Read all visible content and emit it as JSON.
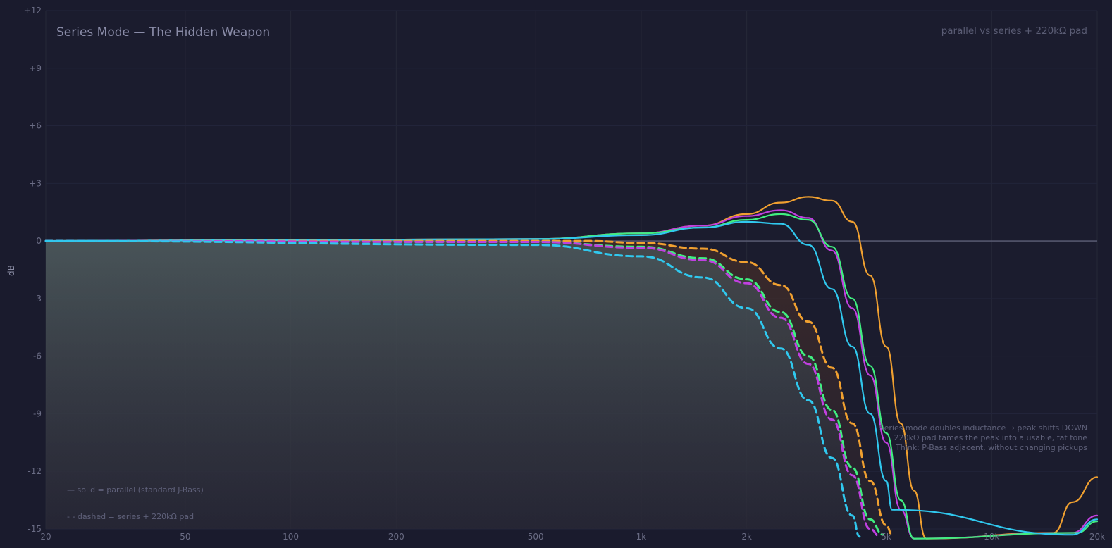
{
  "chart_data": {
    "type": "line",
    "title": "Series Mode — The Hidden Weapon",
    "subtitle": "parallel vs series + 220kΩ pad",
    "ylabel": "dB",
    "xscale": "log",
    "xlim": [
      20,
      20000
    ],
    "ylim": [
      -15,
      12
    ],
    "grid": true,
    "x_ticks": [
      20,
      50,
      100,
      200,
      500,
      1000,
      2000,
      5000,
      10000,
      20000
    ],
    "x_tick_labels": [
      "20",
      "50",
      "100",
      "200",
      "500",
      "1k",
      "2k",
      "5k",
      "10k",
      "20k"
    ],
    "y_ticks": [
      12,
      9,
      6,
      3,
      0,
      -3,
      -6,
      -9,
      -12,
      -15
    ],
    "y_tick_labels": [
      "+12",
      "+9",
      "+6",
      "+3",
      "0",
      "-3",
      "-6",
      "-9",
      "-12",
      "-15"
    ],
    "legend_notes": [
      "— solid = parallel (standard J-Bass)",
      "- - dashed = series + 220kΩ pad"
    ],
    "annotations": [
      "Series mode doubles inductance → peak shifts DOWN",
      "220kΩ pad tames the peak into a usable, fat tone",
      "Think: P-Bass adjacent, without changing pickups"
    ],
    "colors": {
      "orange": "#f0a030",
      "magenta": "#c040e0",
      "green": "#40ee80",
      "cyan": "#30c8ee",
      "zero_line": "#5e6078"
    },
    "series": [
      {
        "style": "solid",
        "color": "#f0a030",
        "x": [
          20,
          500,
          1000,
          1500,
          2000,
          2500,
          3000,
          3500,
          4000,
          4500,
          5000,
          5500,
          6000,
          6500,
          15000,
          17000,
          20000
        ],
        "y": [
          0,
          0.1,
          0.4,
          0.8,
          1.4,
          2.0,
          2.3,
          2.1,
          1.0,
          -1.8,
          -5.5,
          -9.5,
          -13.0,
          -15.5,
          -15.2,
          -13.6,
          -12.3
        ]
      },
      {
        "style": "solid",
        "color": "#c040e0",
        "x": [
          20,
          500,
          1000,
          1500,
          2000,
          2500,
          3000,
          3500,
          4000,
          4500,
          5000,
          5500,
          6000,
          17000,
          20000
        ],
        "y": [
          0,
          0.1,
          0.4,
          0.8,
          1.3,
          1.6,
          1.2,
          -0.5,
          -3.5,
          -7.0,
          -10.5,
          -14.0,
          -15.5,
          -15.2,
          -14.3
        ]
      },
      {
        "style": "solid",
        "color": "#40ee80",
        "x": [
          20,
          500,
          1000,
          1500,
          2000,
          2500,
          3000,
          3500,
          4000,
          4500,
          5000,
          5500,
          6000,
          17500,
          20000
        ],
        "y": [
          0,
          0.1,
          0.4,
          0.7,
          1.1,
          1.4,
          1.1,
          -0.3,
          -3.0,
          -6.5,
          -10.0,
          -13.5,
          -15.5,
          -15.2,
          -14.6
        ]
      },
      {
        "style": "solid",
        "color": "#30c8ee",
        "x": [
          20,
          500,
          1000,
          1500,
          2000,
          2500,
          3000,
          3500,
          4000,
          4500,
          5000,
          5200,
          17000,
          20000
        ],
        "y": [
          0,
          0.1,
          0.3,
          0.7,
          1.0,
          0.9,
          -0.2,
          -2.5,
          -5.5,
          -9.0,
          -12.5,
          -14.0,
          -15.3,
          -14.5
        ]
      },
      {
        "style": "dashed",
        "color": "#f0a030",
        "x": [
          20,
          500,
          700,
          1000,
          1500,
          2000,
          2500,
          3000,
          3500,
          4000,
          4500,
          5000,
          5200
        ],
        "y": [
          0,
          0,
          0,
          -0.1,
          -0.4,
          -1.1,
          -2.3,
          -4.2,
          -6.6,
          -9.5,
          -12.5,
          -14.8,
          -15.3
        ]
      },
      {
        "style": "dashed",
        "color": "#40ee80",
        "x": [
          20,
          500,
          1000,
          1500,
          2000,
          2500,
          3000,
          3500,
          4000,
          4500,
          4900
        ],
        "y": [
          0,
          -0.05,
          -0.3,
          -0.9,
          -2.0,
          -3.7,
          -6.0,
          -8.8,
          -11.8,
          -14.5,
          -15.3
        ]
      },
      {
        "style": "dashed",
        "color": "#c040e0",
        "x": [
          20,
          500,
          1000,
          1500,
          2000,
          2500,
          3000,
          3500,
          4000,
          4500,
          4800
        ],
        "y": [
          0,
          -0.05,
          -0.35,
          -1.0,
          -2.2,
          -4.0,
          -6.4,
          -9.3,
          -12.2,
          -15.0,
          -15.4
        ]
      },
      {
        "style": "dashed",
        "color": "#30c8ee",
        "x": [
          20,
          500,
          1000,
          1500,
          2000,
          2500,
          3000,
          3500,
          4000,
          4200
        ],
        "y": [
          0,
          -0.2,
          -0.8,
          -1.9,
          -3.5,
          -5.6,
          -8.3,
          -11.3,
          -14.3,
          -15.4
        ]
      }
    ]
  }
}
